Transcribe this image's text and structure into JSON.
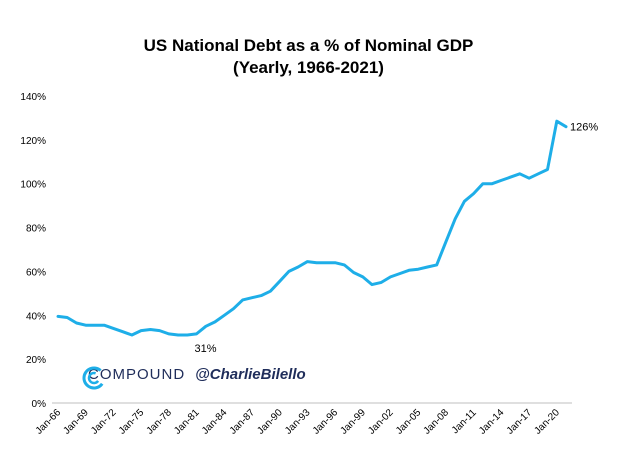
{
  "chart_data": {
    "type": "line",
    "title": "US National Debt as a % of Nominal GDP",
    "subtitle": "(Yearly, 1966-2021)",
    "xlabel": "",
    "ylabel": "",
    "ylim": [
      0,
      140
    ],
    "yticks": [
      "0%",
      "20%",
      "40%",
      "60%",
      "80%",
      "100%",
      "120%",
      "140%"
    ],
    "xticks": [
      "Jan-66",
      "Jan-69",
      "Jan-72",
      "Jan-75",
      "Jan-78",
      "Jan-81",
      "Jan-84",
      "Jan-87",
      "Jan-90",
      "Jan-93",
      "Jan-96",
      "Jan-99",
      "Jan-02",
      "Jan-05",
      "Jan-08",
      "Jan-11",
      "Jan-14",
      "Jan-17",
      "Jan-20"
    ],
    "grid": false,
    "series_color": "#1eaee8",
    "x": [
      1966,
      1967,
      1968,
      1969,
      1970,
      1971,
      1972,
      1973,
      1974,
      1975,
      1976,
      1977,
      1978,
      1979,
      1980,
      1981,
      1982,
      1983,
      1984,
      1985,
      1986,
      1987,
      1988,
      1989,
      1990,
      1991,
      1992,
      1993,
      1994,
      1995,
      1996,
      1997,
      1998,
      1999,
      2000,
      2001,
      2002,
      2003,
      2004,
      2005,
      2006,
      2007,
      2008,
      2009,
      2010,
      2011,
      2012,
      2013,
      2014,
      2015,
      2016,
      2017,
      2018,
      2019,
      2020,
      2021
    ],
    "series": [
      {
        "values": [
          39.5,
          39,
          36.5,
          35.5,
          35.5,
          35.5,
          34,
          32.5,
          31,
          33,
          33.5,
          33,
          31.5,
          31,
          31,
          31.5,
          35,
          37,
          40,
          43,
          47,
          48,
          49,
          51,
          55.5,
          60,
          62,
          64.5,
          64,
          64,
          64,
          63,
          59.5,
          57.5,
          54,
          55,
          57.5,
          59,
          60.5,
          61,
          62,
          63,
          73.5,
          84,
          92,
          95.5,
          100,
          100,
          101.5,
          103,
          104.5,
          102.5,
          104.5,
          106.5,
          128.5,
          126
        ]
      }
    ],
    "annotations": [
      "31%",
      "126%"
    ]
  },
  "branding": {
    "logo_icon": "compound-logo-icon",
    "logo_color": "#1eaee8",
    "brand_name": "COMPOUND",
    "handle": "@CharlieBilello"
  }
}
